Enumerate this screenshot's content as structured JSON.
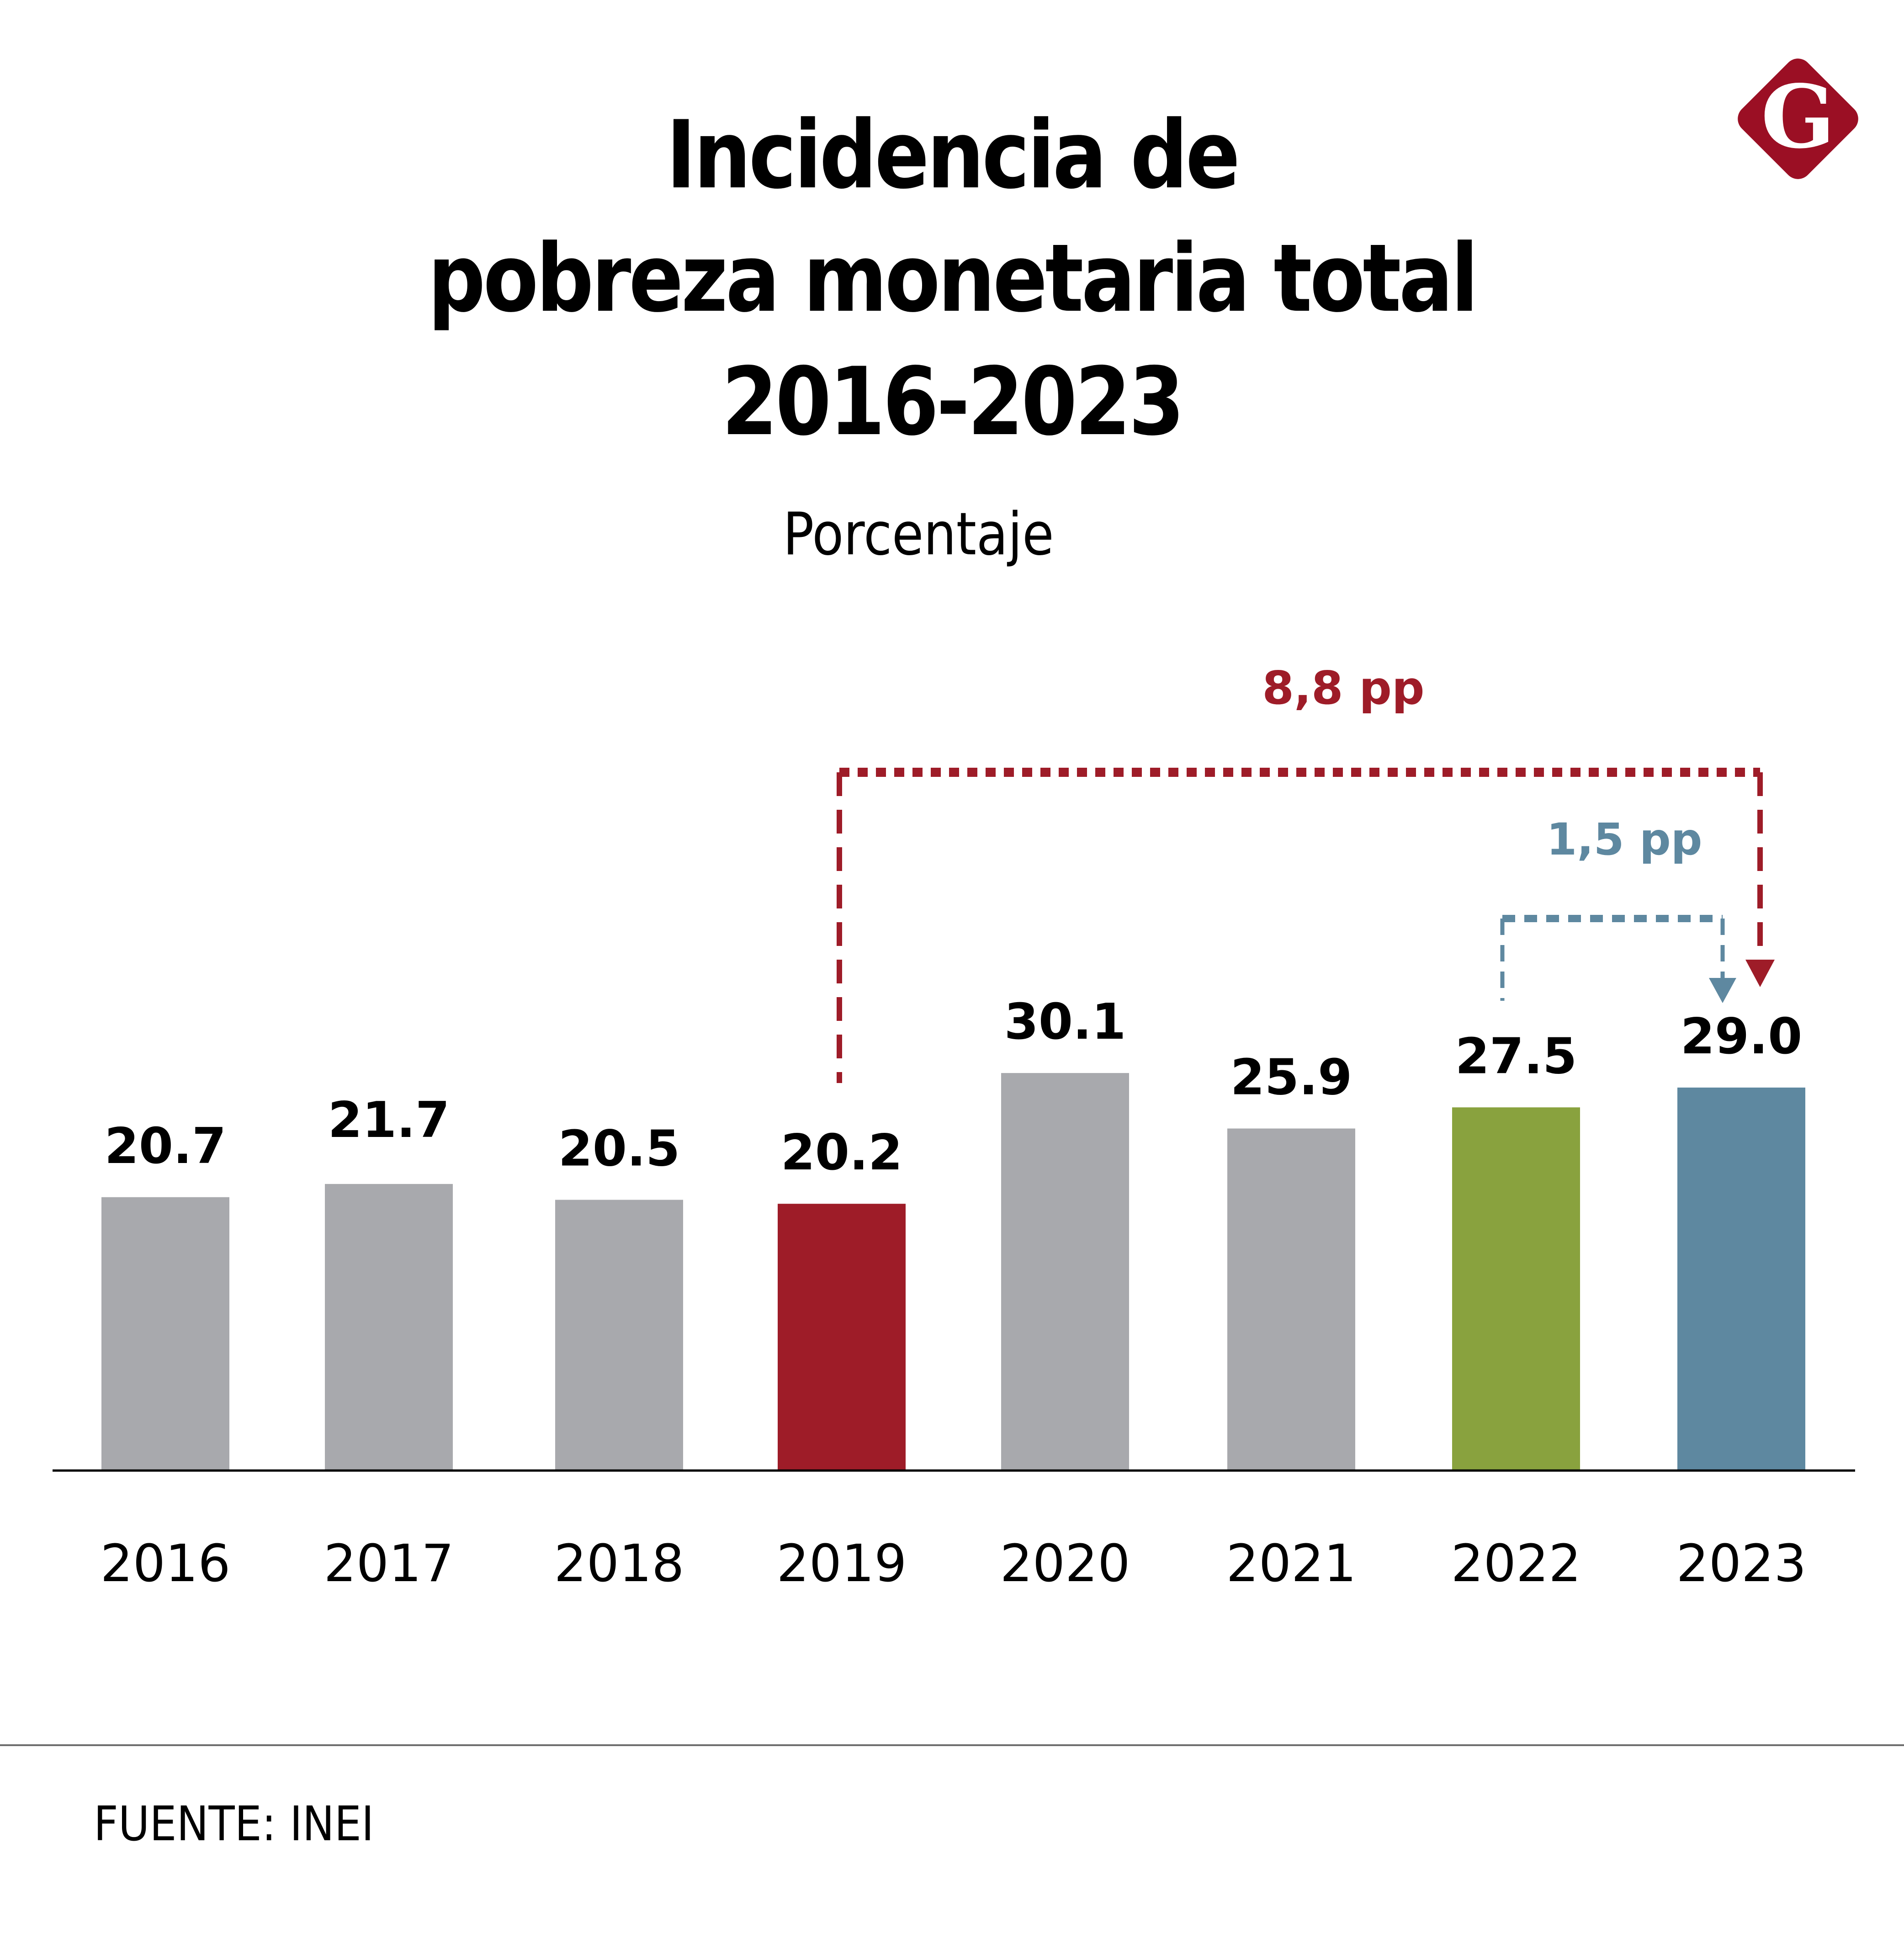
{
  "header": {
    "title_lines": [
      "Incidencia de",
      "pobreza monetaria total",
      "2016-2023"
    ],
    "subtitle": "Porcentaje"
  },
  "logo": {
    "letter": "G",
    "icon": "brand-g-diamond-icon",
    "color": "#9b0f24"
  },
  "footer": {
    "source": "FUENTE: INEI"
  },
  "colors": {
    "default_bar": "#a8a9ad",
    "highlight_2019": "#9e1c28",
    "highlight_2022": "#89a23e",
    "highlight_2023": "#5e88a0",
    "annotation_red": "#9e1c28",
    "annotation_blue": "#5e88a0",
    "axis": "#000000"
  },
  "chart_data": {
    "type": "bar",
    "title": "Incidencia de pobreza monetaria total 2016-2023",
    "subtitle": "Porcentaje",
    "xlabel": "",
    "ylabel": "",
    "categories": [
      "2016",
      "2017",
      "2018",
      "2019",
      "2020",
      "2021",
      "2022",
      "2023"
    ],
    "values": [
      20.7,
      21.7,
      20.5,
      20.2,
      30.1,
      25.9,
      27.5,
      29.0
    ],
    "value_labels": [
      "20.7",
      "21.7",
      "20.5",
      "20.2",
      "30.1",
      "25.9",
      "27.5",
      "29.0"
    ],
    "bar_colors": [
      "#a8a9ad",
      "#a8a9ad",
      "#a8a9ad",
      "#9e1c28",
      "#a8a9ad",
      "#a8a9ad",
      "#89a23e",
      "#5e88a0"
    ],
    "ylim": [
      0,
      45
    ],
    "grid": false,
    "y_axis_visible": false,
    "annotations": [
      {
        "label": "8,8 pp",
        "from": "2019",
        "to": "2023",
        "color": "#9e1c28",
        "style": "dashed-bracket-arrow"
      },
      {
        "label": "1,5 pp",
        "from": "2022",
        "to": "2023",
        "color": "#5e88a0",
        "style": "dashed-bracket-arrow"
      }
    ],
    "source": "FUENTE: INEI"
  }
}
